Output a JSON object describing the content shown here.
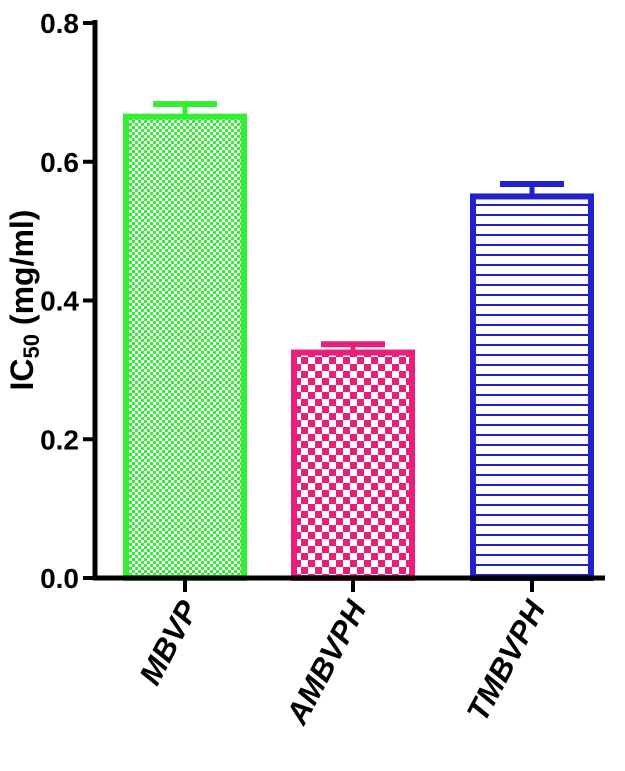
{
  "chart_data": {
    "type": "bar",
    "categories": [
      "MBVP",
      "AMBVPH",
      "TMBVPH"
    ],
    "values": [
      0.665,
      0.325,
      0.55
    ],
    "errors": [
      0.018,
      0.012,
      0.018
    ],
    "colors": [
      "#33ee33",
      "#e8207a",
      "#2222cc"
    ],
    "patterns": [
      "fine-check",
      "checker",
      "horizontal-lines"
    ],
    "ylabel": {
      "main": "IC",
      "sub": "50",
      "unit": " (mg/ml)"
    },
    "xlabel": "",
    "title": "",
    "ylim": [
      0.0,
      0.8
    ],
    "yticks": [
      "0.0",
      "0.2",
      "0.4",
      "0.6",
      "0.8"
    ],
    "grid": false,
    "legend": "none"
  }
}
